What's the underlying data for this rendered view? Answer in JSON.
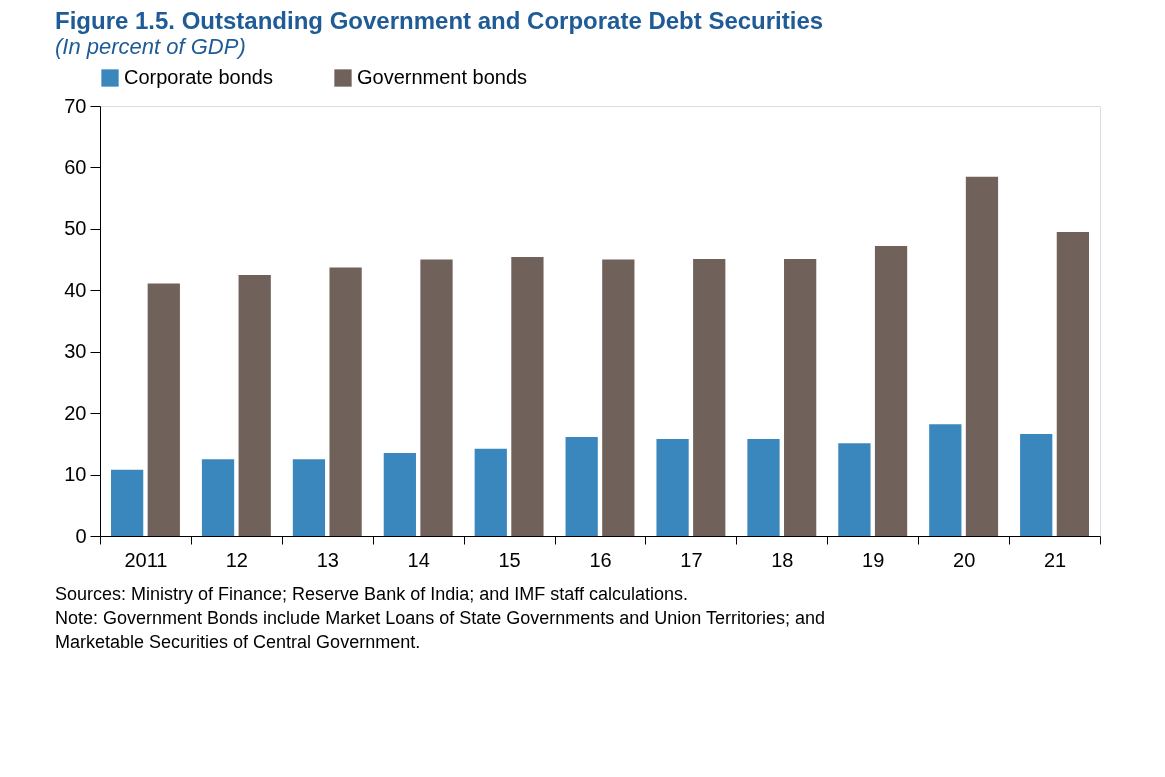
{
  "chart_data": {
    "type": "bar",
    "title": "Figure 1.5. Outstanding Government and Corporate Debt Securities",
    "subtitle": "(In percent of GDP)",
    "categories": [
      "2011",
      "12",
      "13",
      "14",
      "15",
      "16",
      "17",
      "18",
      "19",
      "20",
      "21"
    ],
    "series": [
      {
        "name": "Corporate bonds",
        "color": "#3a87bd",
        "values": [
          10.8,
          12.5,
          12.5,
          13.5,
          14.2,
          16.1,
          15.8,
          15.8,
          15.1,
          18.2,
          16.6
        ]
      },
      {
        "name": "Government bonds",
        "color": "#70615a",
        "values": [
          41.1,
          42.5,
          43.7,
          45.0,
          45.4,
          45.0,
          45.1,
          45.1,
          47.2,
          58.5,
          49.5
        ]
      }
    ],
    "ylim": [
      0,
      70
    ],
    "yticks": [
      0,
      10,
      20,
      30,
      40,
      50,
      60,
      70
    ],
    "grid": false,
    "legend": "top",
    "annotations": [
      "Sources: Ministry of Finance; Reserve Bank of India; and IMF staff calculations.",
      "Note: Government Bonds include Market Loans of State Governments and Union Territories; and Marketable Securities of Central Government."
    ]
  }
}
